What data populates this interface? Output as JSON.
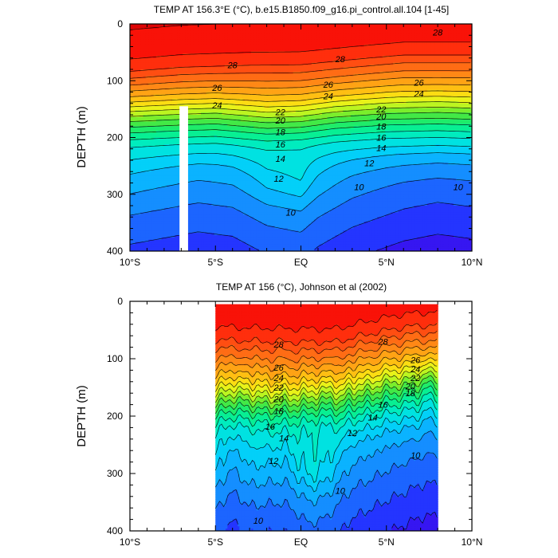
{
  "figure": {
    "background": "#ffffff"
  },
  "chart_data": [
    {
      "type": "contour",
      "title": "TEMP AT 156.3°E (°C), b.e15.B1850.f09_g16.pi_control.all.104 [1-45]",
      "ylabel": "DEPTH (m)",
      "xlabel": "",
      "xlim": [
        -10,
        10
      ],
      "ylim": [
        0,
        400
      ],
      "y_reversed": true,
      "x_ticks": [
        -10,
        -5,
        0,
        5,
        10
      ],
      "x_tick_labels": [
        "10°S",
        "5°S",
        "EQ",
        "5°N",
        "10°N"
      ],
      "y_ticks": [
        0,
        100,
        200,
        300,
        400
      ],
      "y_tick_labels": [
        "0",
        "100",
        "200",
        "300",
        "400"
      ],
      "data_x_range": [
        -10,
        10
      ],
      "masked_column": {
        "x_range": [
          -7.1,
          -6.6
        ],
        "y_range": [
          145,
          400
        ]
      },
      "contour_levels": [
        7,
        8,
        9,
        10,
        11,
        12,
        13,
        14,
        15,
        16,
        17,
        18,
        19,
        20,
        21,
        22,
        23,
        24,
        25,
        26,
        27,
        28,
        29
      ],
      "contour_labels": [
        {
          "text": "28",
          "x": -4.0,
          "y": 72
        },
        {
          "text": "28",
          "x": 2.3,
          "y": 62
        },
        {
          "text": "28",
          "x": 8.0,
          "y": 15
        },
        {
          "text": "26",
          "x": -4.9,
          "y": 112
        },
        {
          "text": "26",
          "x": 1.6,
          "y": 107
        },
        {
          "text": "26",
          "x": 6.9,
          "y": 103
        },
        {
          "text": "24",
          "x": -4.9,
          "y": 143
        },
        {
          "text": "24",
          "x": 1.6,
          "y": 127
        },
        {
          "text": "24",
          "x": 6.9,
          "y": 123
        },
        {
          "text": "22",
          "x": -1.2,
          "y": 155
        },
        {
          "text": "22",
          "x": 4.7,
          "y": 150
        },
        {
          "text": "20",
          "x": -1.2,
          "y": 170
        },
        {
          "text": "20",
          "x": 4.7,
          "y": 163
        },
        {
          "text": "18",
          "x": -1.2,
          "y": 190
        },
        {
          "text": "18",
          "x": 4.7,
          "y": 180
        },
        {
          "text": "16",
          "x": -1.2,
          "y": 212
        },
        {
          "text": "16",
          "x": 4.7,
          "y": 200
        },
        {
          "text": "14",
          "x": -1.2,
          "y": 237
        },
        {
          "text": "14",
          "x": 4.7,
          "y": 218
        },
        {
          "text": "12",
          "x": -1.3,
          "y": 272
        },
        {
          "text": "12",
          "x": 4.0,
          "y": 245
        },
        {
          "text": "10",
          "x": -0.6,
          "y": 332
        },
        {
          "text": "10",
          "x": 3.4,
          "y": 287
        },
        {
          "text": "10",
          "x": 9.2,
          "y": 287
        }
      ]
    },
    {
      "type": "contour",
      "title": "TEMP AT 156 (°C), Johnson et al (2002)",
      "ylabel": "DEPTH (m)",
      "xlabel": "",
      "xlim": [
        -10,
        10
      ],
      "ylim": [
        0,
        400
      ],
      "y_reversed": true,
      "x_ticks": [
        -10,
        -5,
        0,
        5,
        10
      ],
      "x_tick_labels": [
        "10°S",
        "5°S",
        "EQ",
        "5°N",
        "10°N"
      ],
      "y_ticks": [
        0,
        100,
        200,
        300,
        400
      ],
      "y_tick_labels": [
        "0",
        "100",
        "200",
        "300",
        "400"
      ],
      "data_x_range": [
        -5,
        8
      ],
      "data_y_range": [
        5,
        400
      ],
      "contour_levels": [
        7,
        8,
        9,
        10,
        11,
        12,
        13,
        14,
        15,
        16,
        17,
        18,
        19,
        20,
        21,
        22,
        23,
        24,
        25,
        26,
        27,
        28,
        29
      ],
      "contour_labels": [
        {
          "text": "28",
          "x": -1.3,
          "y": 75
        },
        {
          "text": "28",
          "x": 4.8,
          "y": 70
        },
        {
          "text": "26",
          "x": -1.3,
          "y": 115
        },
        {
          "text": "26",
          "x": 6.7,
          "y": 102
        },
        {
          "text": "24",
          "x": -1.3,
          "y": 133
        },
        {
          "text": "24",
          "x": 6.7,
          "y": 118
        },
        {
          "text": "22",
          "x": -1.3,
          "y": 150
        },
        {
          "text": "22",
          "x": 6.7,
          "y": 133
        },
        {
          "text": "20",
          "x": -1.3,
          "y": 170
        },
        {
          "text": "20",
          "x": 6.4,
          "y": 148
        },
        {
          "text": "18",
          "x": -1.3,
          "y": 191
        },
        {
          "text": "18",
          "x": 6.4,
          "y": 160
        },
        {
          "text": "16",
          "x": -1.8,
          "y": 218
        },
        {
          "text": "16",
          "x": 4.8,
          "y": 180
        },
        {
          "text": "14",
          "x": -1.0,
          "y": 238
        },
        {
          "text": "14",
          "x": 4.2,
          "y": 202
        },
        {
          "text": "12",
          "x": -1.6,
          "y": 278
        },
        {
          "text": "12",
          "x": 3.0,
          "y": 229
        },
        {
          "text": "10",
          "x": -2.5,
          "y": 382
        },
        {
          "text": "10",
          "x": 2.3,
          "y": 330
        },
        {
          "text": "10",
          "x": 6.7,
          "y": 268
        }
      ]
    }
  ]
}
